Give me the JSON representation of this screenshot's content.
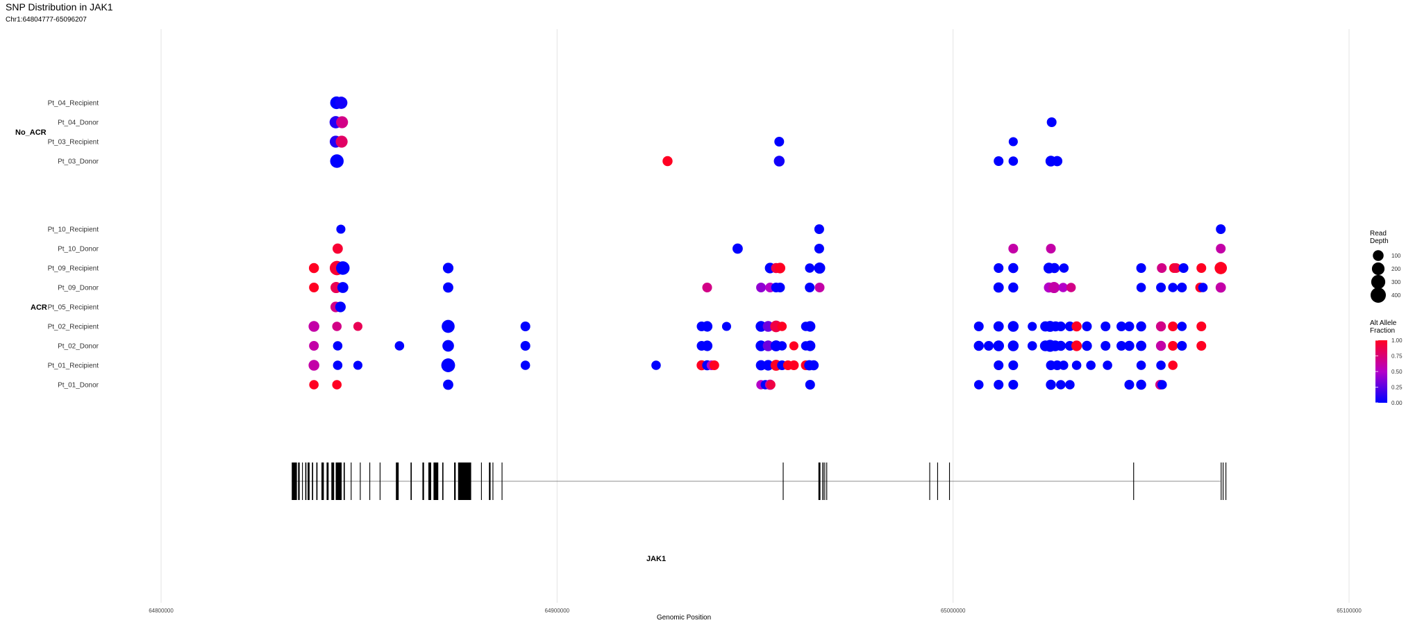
{
  "chart_data": {
    "type": "scatter",
    "title": "SNP Distribution in JAK1",
    "subtitle": "Chr1:64804777-65096207",
    "xlabel": "Genomic Position",
    "ylabel": "",
    "xlim": [
      64800000,
      65100000
    ],
    "x_ticks": [
      64800000,
      64900000,
      65000000,
      65100000
    ],
    "x_tick_labels": [
      "64800000",
      "64900000",
      "65000000",
      "65100000"
    ],
    "grid": true,
    "legend_position": "right",
    "groups": [
      {
        "label": "No_ACR",
        "samples": [
          "Pt_04_Recipient",
          "Pt_04_Donor",
          "Pt_03_Recipient",
          "Pt_03_Donor"
        ]
      },
      {
        "label": "ACR",
        "samples": [
          "Pt_10_Recipient",
          "Pt_10_Donor",
          "Pt_09_Recipient",
          "Pt_09_Donor",
          "Pt_05_Recipient",
          "Pt_02_Recipient",
          "Pt_02_Donor",
          "Pt_01_Recipient",
          "Pt_01_Donor"
        ]
      }
    ],
    "size_legend": {
      "title": "Read\nDepth",
      "values": [
        100,
        200,
        300,
        400
      ]
    },
    "color_legend": {
      "title": "Alt Allele\nFraction",
      "ticks": [
        "1.00",
        "0.75",
        "0.50",
        "0.25",
        "0.00"
      ],
      "low_color": "#0000FF",
      "high_color": "#FF0000"
    },
    "gene": {
      "name": "JAK1",
      "start": 64833000,
      "end": 65067500,
      "exons": [
        [
          64833000,
          64834300
        ],
        [
          64834600,
          64835000
        ],
        [
          64835600,
          64835800
        ],
        [
          64836400,
          64836700
        ],
        [
          64837000,
          64837500
        ],
        [
          64838100,
          64838400
        ],
        [
          64839200,
          64839500
        ],
        [
          64840500,
          64841100
        ],
        [
          64841800,
          64842300
        ],
        [
          64843000,
          64843700
        ],
        [
          64844100,
          64845600
        ],
        [
          64846100,
          64846400
        ],
        [
          64847900,
          64848100
        ],
        [
          64850200,
          64850400
        ],
        [
          64852600,
          64852800
        ],
        [
          64855200,
          64855400
        ],
        [
          64859300,
          64860000
        ],
        [
          64863000,
          64863300
        ],
        [
          64866000,
          64866400
        ],
        [
          64867500,
          64868200
        ],
        [
          64868800,
          64870000
        ],
        [
          64871000,
          64871300
        ],
        [
          64874000,
          64874400
        ],
        [
          64875000,
          64878300
        ],
        [
          64880800,
          64881000
        ],
        [
          64882800,
          64883200
        ],
        [
          64883700,
          64883900
        ],
        [
          64886000,
          64886200
        ],
        [
          64957000,
          64957200
        ],
        [
          64966000,
          64966500
        ],
        [
          64967000,
          64967300
        ],
        [
          64967500,
          64967700
        ],
        [
          64968000,
          64968200
        ],
        [
          64994000,
          64994200
        ],
        [
          64996000,
          64996200
        ],
        [
          64999000,
          64999200
        ],
        [
          65045500,
          65045700
        ],
        [
          65067600,
          65067800
        ],
        [
          65068100,
          65068300
        ],
        [
          65068800,
          65069000
        ]
      ]
    },
    "points": [
      [
        "Pt_04_Recipient",
        64844300,
        200,
        0.0
      ],
      [
        "Pt_04_Recipient",
        64845500,
        180,
        0.05
      ],
      [
        "Pt_04_Donor",
        64844100,
        180,
        0.1
      ],
      [
        "Pt_04_Donor",
        64845700,
        160,
        0.7
      ],
      [
        "Pt_04_Donor",
        65024900,
        60,
        0.0
      ],
      [
        "Pt_03_Recipient",
        64844100,
        160,
        0.1
      ],
      [
        "Pt_03_Recipient",
        64845600,
        160,
        0.8
      ],
      [
        "Pt_03_Recipient",
        64956100,
        60,
        0.0
      ],
      [
        "Pt_03_Recipient",
        65015200,
        40,
        0.0
      ],
      [
        "Pt_03_Donor",
        64844400,
        260,
        0.0
      ],
      [
        "Pt_03_Donor",
        64927900,
        70,
        1.0
      ],
      [
        "Pt_03_Donor",
        64956100,
        100,
        0.05
      ],
      [
        "Pt_03_Donor",
        65011500,
        60,
        0.0
      ],
      [
        "Pt_03_Donor",
        65015200,
        50,
        0.0
      ],
      [
        "Pt_03_Donor",
        65024700,
        100,
        0.0
      ],
      [
        "Pt_03_Donor",
        65026300,
        80,
        0.0
      ],
      [
        "Pt_10_Recipient",
        64845400,
        40,
        0.0
      ],
      [
        "Pt_10_Recipient",
        64966200,
        60,
        0.0
      ],
      [
        "Pt_10_Recipient",
        65067600,
        60,
        0.0
      ],
      [
        "Pt_10_Donor",
        64844600,
        80,
        0.95
      ],
      [
        "Pt_10_Donor",
        64945600,
        80,
        0.0
      ],
      [
        "Pt_10_Donor",
        64966200,
        60,
        0.0
      ],
      [
        "Pt_10_Donor",
        65015200,
        60,
        0.6
      ],
      [
        "Pt_10_Donor",
        65024700,
        60,
        0.6
      ],
      [
        "Pt_10_Donor",
        65067600,
        60,
        0.6
      ],
      [
        "Pt_09_Recipient",
        64838600,
        70,
        1.0
      ],
      [
        "Pt_09_Recipient",
        64844400,
        320,
        0.95
      ],
      [
        "Pt_09_Recipient",
        64845900,
        260,
        0.0
      ],
      [
        "Pt_09_Recipient",
        64872500,
        90,
        0.0
      ],
      [
        "Pt_09_Recipient",
        64953800,
        90,
        0.0
      ],
      [
        "Pt_09_Recipient",
        64955300,
        70,
        0.9
      ],
      [
        "Pt_09_Recipient",
        64956300,
        90,
        1.0
      ],
      [
        "Pt_09_Recipient",
        64963800,
        50,
        0.0
      ],
      [
        "Pt_09_Recipient",
        64966300,
        120,
        0.0
      ],
      [
        "Pt_09_Recipient",
        65011500,
        60,
        0.0
      ],
      [
        "Pt_09_Recipient",
        65015200,
        70,
        0.0
      ],
      [
        "Pt_09_Recipient",
        65024200,
        100,
        0.0
      ],
      [
        "Pt_09_Recipient",
        65025600,
        70,
        0.0
      ],
      [
        "Pt_09_Recipient",
        65028000,
        50,
        0.0
      ],
      [
        "Pt_09_Recipient",
        65047500,
        60,
        0.0
      ],
      [
        "Pt_09_Recipient",
        65052700,
        60,
        0.7
      ],
      [
        "Pt_09_Recipient",
        65055800,
        60,
        1.0
      ],
      [
        "Pt_09_Recipient",
        65056300,
        60,
        0.9
      ],
      [
        "Pt_09_Recipient",
        65058200,
        60,
        0.0
      ],
      [
        "Pt_09_Recipient",
        65062700,
        60,
        1.0
      ],
      [
        "Pt_09_Recipient",
        65067600,
        180,
        1.0
      ],
      [
        "Pt_09_Donor",
        64838600,
        60,
        1.0
      ],
      [
        "Pt_09_Donor",
        64844200,
        120,
        0.85
      ],
      [
        "Pt_09_Donor",
        64845900,
        110,
        0.0
      ],
      [
        "Pt_09_Donor",
        64872500,
        80,
        0.0
      ],
      [
        "Pt_09_Donor",
        64937900,
        60,
        0.7
      ],
      [
        "Pt_09_Donor",
        64951500,
        60,
        0.4
      ],
      [
        "Pt_09_Donor",
        64953800,
        60,
        0.5
      ],
      [
        "Pt_09_Donor",
        64955300,
        60,
        0.0
      ],
      [
        "Pt_09_Donor",
        64956300,
        60,
        0.0
      ],
      [
        "Pt_09_Donor",
        64963800,
        60,
        0.0
      ],
      [
        "Pt_09_Donor",
        64966300,
        60,
        0.6
      ],
      [
        "Pt_09_Donor",
        65011500,
        80,
        0.0
      ],
      [
        "Pt_09_Donor",
        65015200,
        70,
        0.0
      ],
      [
        "Pt_09_Donor",
        65024200,
        70,
        0.5
      ],
      [
        "Pt_09_Donor",
        65025500,
        120,
        0.6
      ],
      [
        "Pt_09_Donor",
        65027800,
        50,
        0.5
      ],
      [
        "Pt_09_Donor",
        65029800,
        50,
        0.7
      ],
      [
        "Pt_09_Donor",
        65047500,
        50,
        0.0
      ],
      [
        "Pt_09_Donor",
        65052500,
        60,
        0.0
      ],
      [
        "Pt_09_Donor",
        65055500,
        50,
        0.0
      ],
      [
        "Pt_09_Donor",
        65057800,
        60,
        0.0
      ],
      [
        "Pt_09_Donor",
        65062400,
        60,
        1.0
      ],
      [
        "Pt_09_Donor",
        65063100,
        50,
        0.0
      ],
      [
        "Pt_09_Donor",
        65067600,
        80,
        0.6
      ],
      [
        "Pt_05_Recipient",
        64844100,
        90,
        0.7
      ],
      [
        "Pt_05_Recipient",
        64845300,
        90,
        0.0
      ],
      [
        "Pt_02_Recipient",
        64838600,
        100,
        0.6
      ],
      [
        "Pt_02_Recipient",
        64844400,
        50,
        0.7
      ],
      [
        "Pt_02_Recipient",
        64849700,
        40,
        0.85
      ],
      [
        "Pt_02_Recipient",
        64872500,
        220,
        0.0
      ],
      [
        "Pt_02_Recipient",
        64892000,
        60,
        0.0
      ],
      [
        "Pt_02_Recipient",
        64936500,
        60,
        0.0
      ],
      [
        "Pt_02_Recipient",
        64937900,
        90,
        0.0
      ],
      [
        "Pt_02_Recipient",
        64942800,
        40,
        0.0
      ],
      [
        "Pt_02_Recipient",
        64951500,
        100,
        0.0
      ],
      [
        "Pt_02_Recipient",
        64953300,
        100,
        0.3
      ],
      [
        "Pt_02_Recipient",
        64955300,
        140,
        0.9
      ],
      [
        "Pt_02_Recipient",
        64956800,
        50,
        1.0
      ],
      [
        "Pt_02_Recipient",
        64962800,
        50,
        0.0
      ],
      [
        "Pt_02_Recipient",
        64963900,
        90,
        0.0
      ],
      [
        "Pt_02_Recipient",
        65006500,
        60,
        0.0
      ],
      [
        "Pt_02_Recipient",
        65011500,
        80,
        0.0
      ],
      [
        "Pt_02_Recipient",
        65015200,
        100,
        0.0
      ],
      [
        "Pt_02_Recipient",
        65020000,
        40,
        0.0
      ],
      [
        "Pt_02_Recipient",
        65023300,
        80,
        0.0
      ],
      [
        "Pt_02_Recipient",
        65024500,
        110,
        0.0
      ],
      [
        "Pt_02_Recipient",
        65025900,
        70,
        0.0
      ],
      [
        "Pt_02_Recipient",
        65027200,
        60,
        0.0
      ],
      [
        "Pt_02_Recipient",
        65029500,
        60,
        0.0
      ],
      [
        "Pt_02_Recipient",
        65031200,
        70,
        1.0
      ],
      [
        "Pt_02_Recipient",
        65033800,
        60,
        0.0
      ],
      [
        "Pt_02_Recipient",
        65038500,
        60,
        0.0
      ],
      [
        "Pt_02_Recipient",
        65042500,
        60,
        0.0
      ],
      [
        "Pt_02_Recipient",
        65044500,
        60,
        0.0
      ],
      [
        "Pt_02_Recipient",
        65047500,
        70,
        0.0
      ],
      [
        "Pt_02_Recipient",
        65052500,
        70,
        0.7
      ],
      [
        "Pt_02_Recipient",
        65055500,
        60,
        1.0
      ],
      [
        "Pt_02_Recipient",
        65057800,
        50,
        0.0
      ],
      [
        "Pt_02_Recipient",
        65062700,
        60,
        1.0
      ],
      [
        "Pt_02_Donor",
        64838600,
        60,
        0.6
      ],
      [
        "Pt_02_Donor",
        64844600,
        50,
        0.0
      ],
      [
        "Pt_02_Donor",
        64860200,
        50,
        0.0
      ],
      [
        "Pt_02_Donor",
        64872500,
        140,
        0.0
      ],
      [
        "Pt_02_Donor",
        64892000,
        60,
        0.0
      ],
      [
        "Pt_02_Donor",
        64936500,
        60,
        0.0
      ],
      [
        "Pt_02_Donor",
        64937900,
        90,
        0.0
      ],
      [
        "Pt_02_Donor",
        64951500,
        100,
        0.0
      ],
      [
        "Pt_02_Donor",
        64953300,
        100,
        0.3
      ],
      [
        "Pt_02_Donor",
        64955300,
        110,
        0.0
      ],
      [
        "Pt_02_Donor",
        64956800,
        50,
        0.0
      ],
      [
        "Pt_02_Donor",
        64959800,
        40,
        1.0
      ],
      [
        "Pt_02_Donor",
        64962800,
        50,
        0.0
      ],
      [
        "Pt_02_Donor",
        64963900,
        90,
        0.0
      ],
      [
        "Pt_02_Donor",
        65006500,
        70,
        0.0
      ],
      [
        "Pt_02_Donor",
        65009000,
        60,
        0.0
      ],
      [
        "Pt_02_Donor",
        65011500,
        100,
        0.0
      ],
      [
        "Pt_02_Donor",
        65015200,
        100,
        0.0
      ],
      [
        "Pt_02_Donor",
        65020000,
        50,
        0.0
      ],
      [
        "Pt_02_Donor",
        65023300,
        100,
        0.0
      ],
      [
        "Pt_02_Donor",
        65024500,
        160,
        0.0
      ],
      [
        "Pt_02_Donor",
        65025800,
        100,
        0.0
      ],
      [
        "Pt_02_Donor",
        65027200,
        70,
        0.0
      ],
      [
        "Pt_02_Donor",
        65029500,
        60,
        0.0
      ],
      [
        "Pt_02_Donor",
        65031200,
        90,
        1.0
      ],
      [
        "Pt_02_Donor",
        65033800,
        70,
        0.0
      ],
      [
        "Pt_02_Donor",
        65038500,
        60,
        0.0
      ],
      [
        "Pt_02_Donor",
        65042500,
        60,
        0.0
      ],
      [
        "Pt_02_Donor",
        65044500,
        70,
        0.0
      ],
      [
        "Pt_02_Donor",
        65047500,
        80,
        0.0
      ],
      [
        "Pt_02_Donor",
        65052500,
        70,
        0.6
      ],
      [
        "Pt_02_Donor",
        65055500,
        60,
        1.0
      ],
      [
        "Pt_02_Donor",
        65057800,
        60,
        0.0
      ],
      [
        "Pt_02_Donor",
        65062700,
        60,
        1.0
      ],
      [
        "Pt_01_Recipient",
        64838600,
        100,
        0.6
      ],
      [
        "Pt_01_Recipient",
        64844600,
        50,
        0.0
      ],
      [
        "Pt_01_Recipient",
        64849700,
        40,
        0.0
      ],
      [
        "Pt_01_Recipient",
        64872500,
        280,
        0.0
      ],
      [
        "Pt_01_Recipient",
        64892000,
        50,
        0.0
      ],
      [
        "Pt_01_Recipient",
        64925000,
        50,
        0.0
      ],
      [
        "Pt_01_Recipient",
        64936500,
        70,
        1.0
      ],
      [
        "Pt_01_Recipient",
        64937900,
        70,
        0.0
      ],
      [
        "Pt_01_Recipient",
        64939000,
        60,
        0.5
      ],
      [
        "Pt_01_Recipient",
        64939700,
        60,
        1.0
      ],
      [
        "Pt_01_Recipient",
        64951500,
        80,
        0.0
      ],
      [
        "Pt_01_Recipient",
        64953300,
        90,
        0.0
      ],
      [
        "Pt_01_Recipient",
        64955300,
        110,
        1.0
      ],
      [
        "Pt_01_Recipient",
        64956800,
        60,
        0.0
      ],
      [
        "Pt_01_Recipient",
        64958300,
        60,
        1.0
      ],
      [
        "Pt_01_Recipient",
        64959800,
        60,
        1.0
      ],
      [
        "Pt_01_Recipient",
        64962800,
        60,
        1.0
      ],
      [
        "Pt_01_Recipient",
        64963700,
        80,
        0.0
      ],
      [
        "Pt_01_Recipient",
        64964800,
        70,
        0.0
      ],
      [
        "Pt_01_Recipient",
        65011500,
        60,
        0.0
      ],
      [
        "Pt_01_Recipient",
        65015200,
        60,
        0.0
      ],
      [
        "Pt_01_Recipient",
        65024700,
        60,
        0.0
      ],
      [
        "Pt_01_Recipient",
        65026300,
        60,
        0.0
      ],
      [
        "Pt_01_Recipient",
        65027900,
        50,
        0.0
      ],
      [
        "Pt_01_Recipient",
        65031200,
        50,
        0.0
      ],
      [
        "Pt_01_Recipient",
        65034800,
        50,
        0.0
      ],
      [
        "Pt_01_Recipient",
        65039000,
        50,
        0.0
      ],
      [
        "Pt_01_Recipient",
        65047500,
        50,
        0.0
      ],
      [
        "Pt_01_Recipient",
        65052500,
        50,
        0.0
      ],
      [
        "Pt_01_Recipient",
        65055500,
        50,
        1.0
      ],
      [
        "Pt_01_Donor",
        64838600,
        50,
        1.0
      ],
      [
        "Pt_01_Donor",
        64844400,
        50,
        1.0
      ],
      [
        "Pt_01_Donor",
        64872500,
        80,
        0.0
      ],
      [
        "Pt_01_Donor",
        64951500,
        50,
        0.5
      ],
      [
        "Pt_01_Donor",
        64952600,
        50,
        0.0
      ],
      [
        "Pt_01_Donor",
        64953800,
        80,
        0.6
      ],
      [
        "Pt_01_Donor",
        64954000,
        40,
        0.9
      ],
      [
        "Pt_01_Donor",
        64963900,
        60,
        0.0
      ],
      [
        "Pt_01_Donor",
        65006500,
        50,
        0.0
      ],
      [
        "Pt_01_Donor",
        65011500,
        60,
        0.0
      ],
      [
        "Pt_01_Donor",
        65015200,
        60,
        0.0
      ],
      [
        "Pt_01_Donor",
        65024700,
        70,
        0.0
      ],
      [
        "Pt_01_Donor",
        65027200,
        50,
        0.0
      ],
      [
        "Pt_01_Donor",
        65029500,
        50,
        0.0
      ],
      [
        "Pt_01_Donor",
        65044500,
        60,
        0.0
      ],
      [
        "Pt_01_Donor",
        65047500,
        70,
        0.0
      ],
      [
        "Pt_01_Donor",
        65052300,
        60,
        0.7
      ],
      [
        "Pt_01_Donor",
        65052800,
        50,
        0.0
      ]
    ]
  }
}
